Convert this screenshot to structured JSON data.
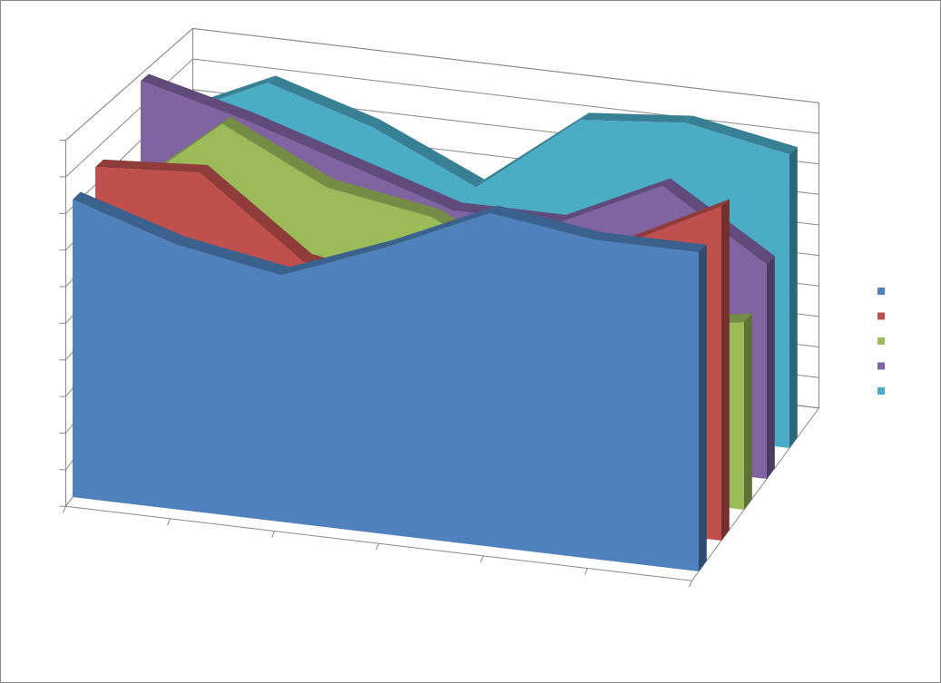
{
  "chart_data": {
    "type": "area3d",
    "categories": [
      null,
      null,
      null,
      null,
      null,
      null,
      null
    ],
    "series": [
      {
        "color": "#4f81bd",
        "values": [
          8.2,
          7.3,
          6.8,
          7.9,
          9.2,
          8.8,
          8.8
        ]
      },
      {
        "color": "#c0504d",
        "values": [
          8.5,
          8.7,
          6.5,
          6,
          6.5,
          8,
          9.5
        ]
      },
      {
        "color": "#9bbb59",
        "values": [
          7,
          9.5,
          8,
          7.5,
          6,
          5,
          5.5
        ]
      },
      {
        "color": "#8064a2",
        "values": [
          9.8,
          9,
          8,
          7,
          7,
          8.5,
          6.5
        ]
      },
      {
        "color": "#4bacc6",
        "values": [
          8,
          9.5,
          8.5,
          7,
          9.5,
          9.8,
          9.2
        ]
      }
    ],
    "ylim": [
      0,
      10
    ],
    "yticks": [
      0,
      1,
      2,
      3,
      4,
      5,
      6,
      7,
      8,
      9,
      10
    ],
    "grid": true
  }
}
